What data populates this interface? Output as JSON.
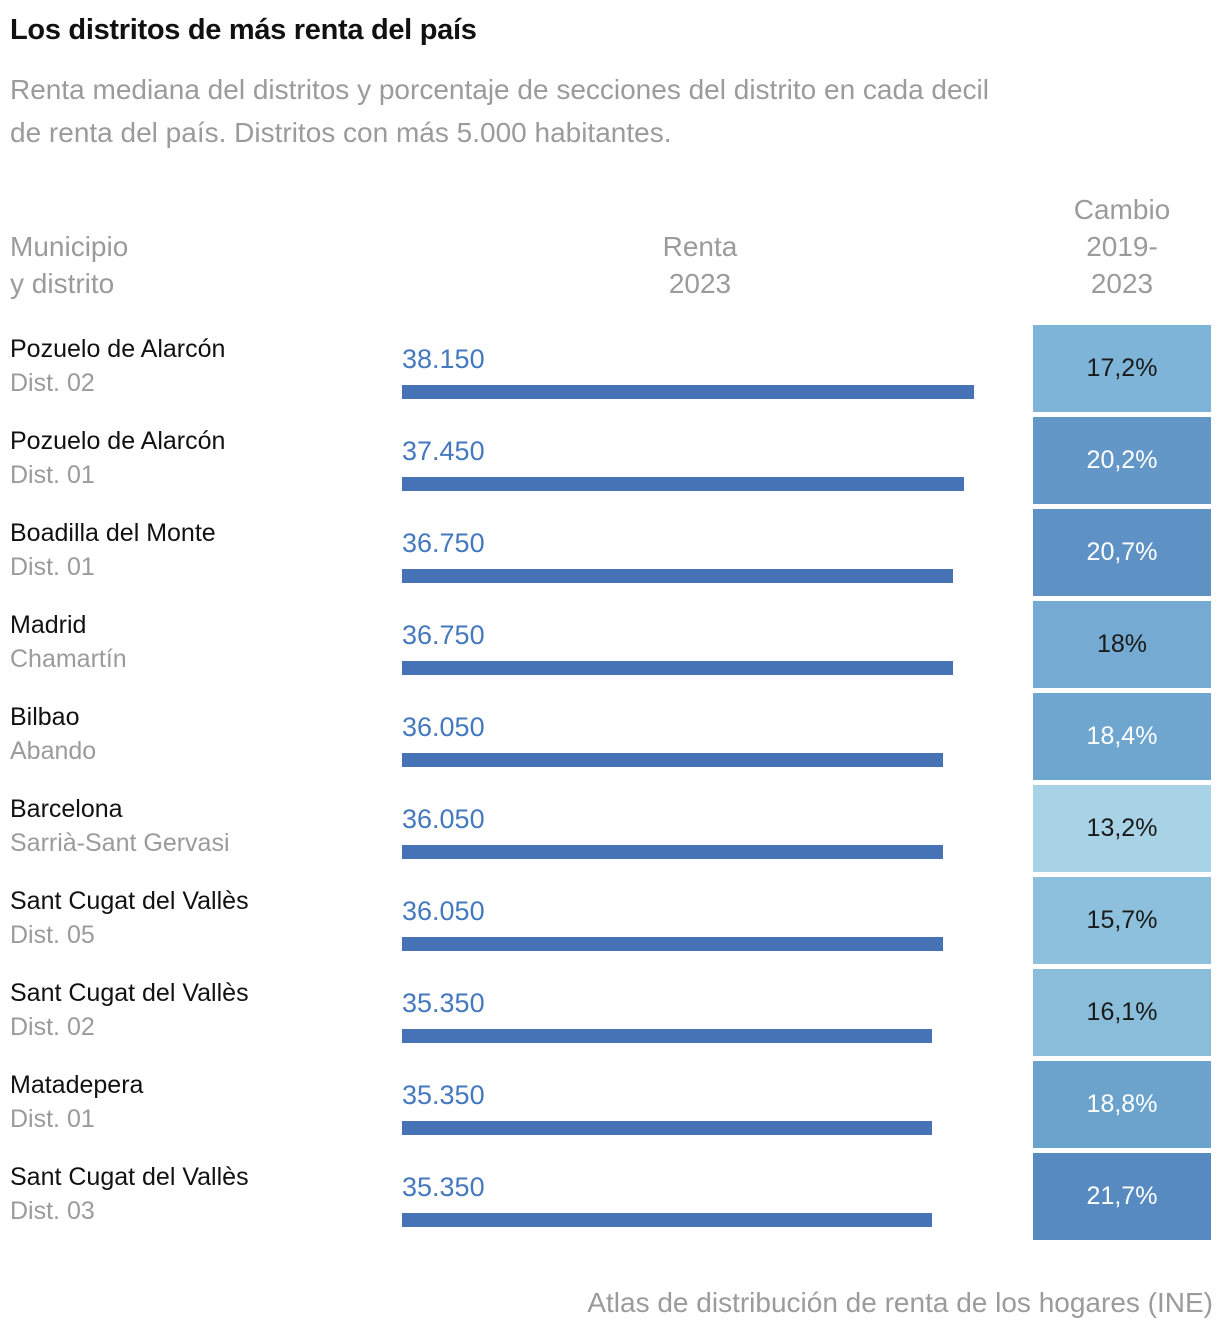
{
  "header": {
    "title": "Los distritos de más renta del país",
    "subtitle_line1": "Renta mediana del distritos y porcentaje de secciones del distrito en cada decil",
    "subtitle_line2": "de renta del país. Distritos con más 5.000 habitantes."
  },
  "columns": {
    "municipality": [
      "Municipio",
      "y distrito"
    ],
    "renta": [
      "Renta",
      "2023"
    ],
    "cambio": [
      "Cambio",
      "2019-",
      "2023"
    ]
  },
  "colors": {
    "bar": "#4573b5",
    "value_label": "#4478bf",
    "title_text": "#111111",
    "muted_text": "#9b9b9b"
  },
  "chart_data": {
    "type": "bar",
    "title": "Los distritos de más renta del país",
    "xlabel": "Renta 2023",
    "xlim": [
      0,
      38150
    ],
    "legend": "none",
    "grid": false,
    "rows": [
      {
        "municipality": "Pozuelo de Alarcón",
        "district": "Dist. 02",
        "renta_label": "38.150",
        "renta": 38150,
        "cambio_label": "17,2%",
        "cambio": 17.2,
        "cell_bg": "#7db4d7",
        "cell_text": "#1a1a1a"
      },
      {
        "municipality": "Pozuelo de Alarcón",
        "district": "Dist. 01",
        "renta_label": "37.450",
        "renta": 37450,
        "cambio_label": "20,2%",
        "cambio": 20.2,
        "cell_bg": "#6297c8",
        "cell_text": "#ffffff"
      },
      {
        "municipality": "Boadilla del Monte",
        "district": "Dist. 01",
        "renta_label": "36.750",
        "renta": 36750,
        "cambio_label": "20,7%",
        "cambio": 20.7,
        "cell_bg": "#5e92c5",
        "cell_text": "#ffffff"
      },
      {
        "municipality": "Madrid",
        "district": "Chamartín",
        "renta_label": "36.750",
        "renta": 36750,
        "cambio_label": "18%",
        "cambio": 18.0,
        "cell_bg": "#75abd2",
        "cell_text": "#1a1a1a"
      },
      {
        "municipality": "Bilbao",
        "district": "Abando",
        "renta_label": "36.050",
        "renta": 36050,
        "cambio_label": "18,4%",
        "cambio": 18.4,
        "cell_bg": "#6ea6cf",
        "cell_text": "#ffffff"
      },
      {
        "municipality": "Barcelona",
        "district": "Sarrià-Sant Gervasi",
        "renta_label": "36.050",
        "renta": 36050,
        "cambio_label": "13,2%",
        "cambio": 13.2,
        "cell_bg": "#a8d2e5",
        "cell_text": "#1a1a1a"
      },
      {
        "municipality": "Sant Cugat del Vallès",
        "district": "Dist. 05",
        "renta_label": "36.050",
        "renta": 36050,
        "cambio_label": "15,7%",
        "cambio": 15.7,
        "cell_bg": "#8dc0dc",
        "cell_text": "#1a1a1a"
      },
      {
        "municipality": "Sant Cugat del Vallès",
        "district": "Dist. 02",
        "renta_label": "35.350",
        "renta": 35350,
        "cambio_label": "16,1%",
        "cambio": 16.1,
        "cell_bg": "#8abdda",
        "cell_text": "#1a1a1a"
      },
      {
        "municipality": "Matadepera",
        "district": "Dist. 01",
        "renta_label": "35.350",
        "renta": 35350,
        "cambio_label": "18,8%",
        "cambio": 18.8,
        "cell_bg": "#6ba3cd",
        "cell_text": "#ffffff"
      },
      {
        "municipality": "Sant Cugat del Vallès",
        "district": "Dist. 03",
        "renta_label": "35.350",
        "renta": 35350,
        "cambio_label": "21,7%",
        "cambio": 21.7,
        "cell_bg": "#578ac0",
        "cell_text": "#ffffff"
      }
    ]
  },
  "footer": {
    "source": "Atlas de distribución de renta de los hogares (INE)"
  }
}
